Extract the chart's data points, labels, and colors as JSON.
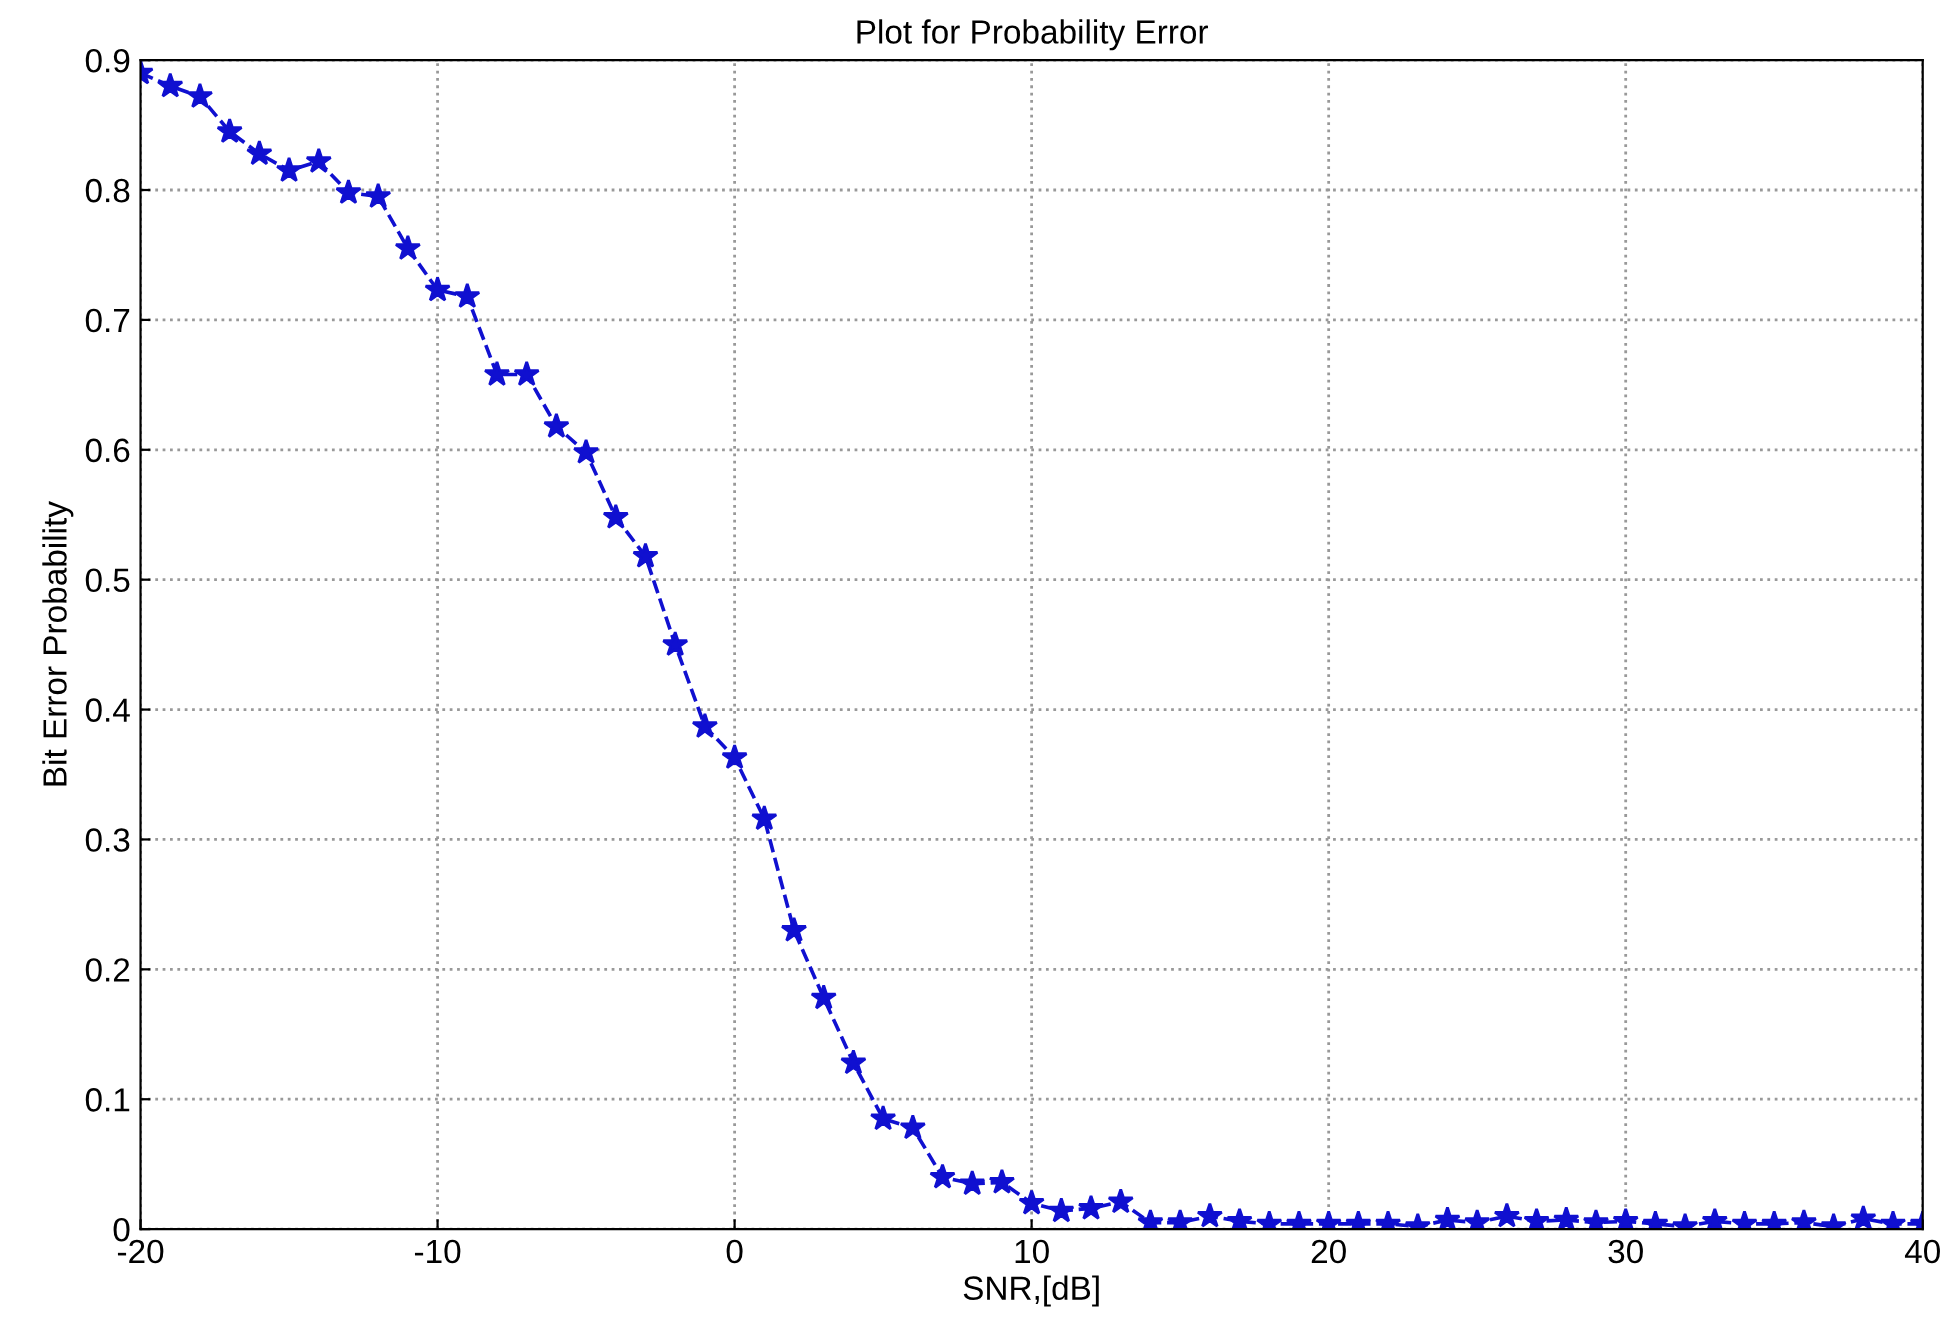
{
  "chart_data": {
    "type": "line",
    "title": "Plot for Probability Error",
    "xlabel": "SNR,[dB]",
    "ylabel": "Bit Error Probability",
    "x": [
      -20,
      -19,
      -18,
      -17,
      -16,
      -15,
      -14,
      -13,
      -12,
      -11,
      -10,
      -9,
      -8,
      -7,
      -6,
      -5,
      -4,
      -3,
      -2,
      -1,
      0,
      1,
      2,
      3,
      4,
      5,
      6,
      7,
      8,
      9,
      10,
      11,
      12,
      13,
      14,
      15,
      16,
      17,
      18,
      19,
      20,
      21,
      22,
      23,
      24,
      25,
      26,
      27,
      28,
      29,
      30,
      31,
      32,
      33,
      34,
      35,
      36,
      37,
      38,
      39,
      40
    ],
    "series": [
      {
        "color": "#1010d0",
        "values": [
          0.89,
          0.88,
          0.872,
          0.845,
          0.828,
          0.815,
          0.822,
          0.798,
          0.795,
          0.755,
          0.723,
          0.718,
          0.658,
          0.658,
          0.618,
          0.598,
          0.548,
          0.518,
          0.45,
          0.387,
          0.363,
          0.316,
          0.23,
          0.178,
          0.128,
          0.085,
          0.078,
          0.04,
          0.035,
          0.036,
          0.02,
          0.014,
          0.016,
          0.021,
          0.005,
          0.005,
          0.01,
          0.006,
          0.004,
          0.004,
          0.004,
          0.004,
          0.004,
          0.002,
          0.007,
          0.005,
          0.01,
          0.006,
          0.007,
          0.005,
          0.006,
          0.004,
          0.002,
          0.006,
          0.004,
          0.004,
          0.005,
          0.002,
          0.008,
          0.004,
          0.004
        ]
      }
    ],
    "xlim": [
      -20,
      40
    ],
    "xticks": [
      -20,
      -10,
      0,
      10,
      20,
      30,
      40
    ],
    "ylim": [
      0,
      0.9
    ],
    "yticks": [
      0,
      0.1,
      0.2,
      0.3,
      0.4,
      0.5,
      0.6,
      0.7,
      0.8,
      0.9
    ],
    "grid": true,
    "marker": "star",
    "line_style": "dashed"
  }
}
